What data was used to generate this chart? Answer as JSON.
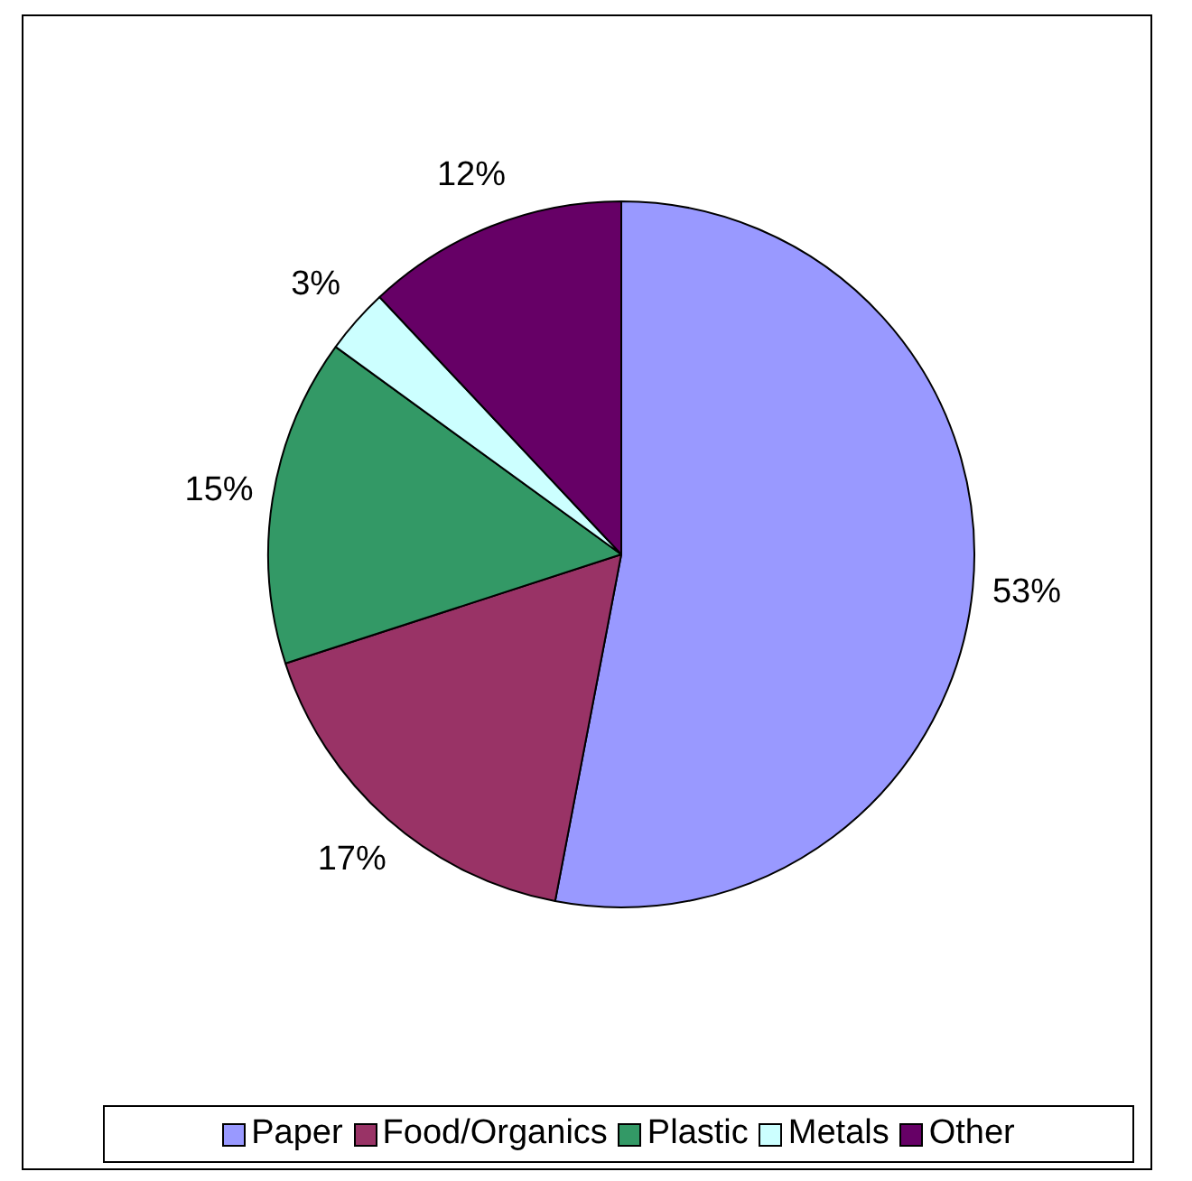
{
  "chart_data": {
    "type": "pie",
    "categories": [
      "Paper",
      "Food/Organics",
      "Plastic",
      "Metals",
      "Other"
    ],
    "values": [
      53,
      17,
      15,
      3,
      12
    ],
    "colors": [
      "#9999ff",
      "#993366",
      "#339966",
      "#ccffff",
      "#660066"
    ],
    "value_labels": [
      "53%",
      "17%",
      "15%",
      "3%",
      "12%"
    ],
    "legend": "bottom"
  }
}
